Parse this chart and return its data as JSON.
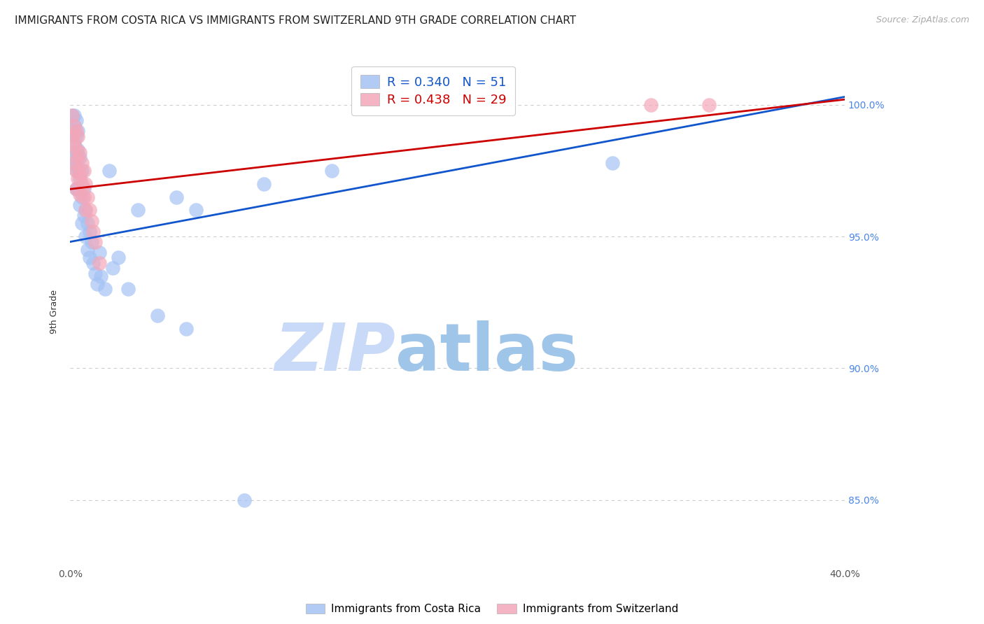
{
  "title": "IMMIGRANTS FROM COSTA RICA VS IMMIGRANTS FROM SWITZERLAND 9TH GRADE CORRELATION CHART",
  "source_text": "Source: ZipAtlas.com",
  "ylabel_left": "9th Grade",
  "xlabel_label_cr": "Immigrants from Costa Rica",
  "xlabel_label_sw": "Immigrants from Switzerland",
  "R_cr": 0.34,
  "N_cr": 51,
  "R_sw": 0.438,
  "N_sw": 29,
  "x_min": 0.0,
  "x_max": 0.4,
  "y_min": 0.825,
  "y_max": 1.018,
  "y_ticks": [
    0.85,
    0.9,
    0.95,
    1.0
  ],
  "y_tick_labels": [
    "85.0%",
    "90.0%",
    "95.0%",
    "100.0%"
  ],
  "x_ticks": [
    0.0,
    0.05,
    0.1,
    0.15,
    0.2,
    0.25,
    0.3,
    0.35,
    0.4
  ],
  "x_tick_labels": [
    "0.0%",
    "",
    "",
    "",
    "",
    "",
    "",
    "",
    "40.0%"
  ],
  "color_cr": "#a4c2f4",
  "color_sw": "#f4a7b9",
  "color_trend_cr": "#1155cc",
  "color_trend_sw": "#cc0000",
  "background_color": "#ffffff",
  "watermark_text1": "ZIP",
  "watermark_text2": "atlas",
  "watermark_color1": "#c9daf8",
  "watermark_color2": "#9fc5e8",
  "title_fontsize": 11,
  "axis_label_fontsize": 9,
  "tick_fontsize": 10,
  "right_tick_color": "#4a86e8",
  "cr_x": [
    0.001,
    0.001,
    0.001,
    0.002,
    0.002,
    0.002,
    0.002,
    0.003,
    0.003,
    0.003,
    0.003,
    0.003,
    0.004,
    0.004,
    0.004,
    0.004,
    0.005,
    0.005,
    0.005,
    0.006,
    0.006,
    0.006,
    0.007,
    0.007,
    0.008,
    0.008,
    0.009,
    0.009,
    0.01,
    0.01,
    0.011,
    0.012,
    0.013,
    0.014,
    0.015,
    0.016,
    0.018,
    0.02,
    0.022,
    0.025,
    0.03,
    0.035,
    0.045,
    0.055,
    0.06,
    0.065,
    0.09,
    0.1,
    0.135,
    0.175,
    0.28
  ],
  "cr_y": [
    0.996,
    0.99,
    0.98,
    0.996,
    0.992,
    0.985,
    0.978,
    0.994,
    0.988,
    0.982,
    0.975,
    0.968,
    0.99,
    0.983,
    0.976,
    0.968,
    0.98,
    0.972,
    0.962,
    0.975,
    0.965,
    0.955,
    0.968,
    0.958,
    0.96,
    0.95,
    0.955,
    0.945,
    0.952,
    0.942,
    0.948,
    0.94,
    0.936,
    0.932,
    0.944,
    0.935,
    0.93,
    0.975,
    0.938,
    0.942,
    0.93,
    0.96,
    0.92,
    0.965,
    0.915,
    0.96,
    0.85,
    0.97,
    0.975,
    1.0,
    0.978
  ],
  "sw_x": [
    0.001,
    0.001,
    0.002,
    0.002,
    0.002,
    0.003,
    0.003,
    0.003,
    0.003,
    0.004,
    0.004,
    0.004,
    0.005,
    0.005,
    0.005,
    0.006,
    0.006,
    0.007,
    0.007,
    0.008,
    0.008,
    0.009,
    0.01,
    0.011,
    0.012,
    0.013,
    0.015,
    0.3,
    0.33
  ],
  "sw_y": [
    0.996,
    0.988,
    0.992,
    0.985,
    0.978,
    0.99,
    0.983,
    0.975,
    0.968,
    0.988,
    0.98,
    0.972,
    0.982,
    0.974,
    0.966,
    0.978,
    0.97,
    0.975,
    0.965,
    0.97,
    0.96,
    0.965,
    0.96,
    0.956,
    0.952,
    0.948,
    0.94,
    1.0,
    1.0
  ],
  "trend_cr_x0": 0.0,
  "trend_cr_y0": 0.948,
  "trend_cr_x1": 0.4,
  "trend_cr_y1": 1.003,
  "trend_sw_x0": 0.0,
  "trend_sw_y0": 0.968,
  "trend_sw_x1": 0.4,
  "trend_sw_y1": 1.002
}
